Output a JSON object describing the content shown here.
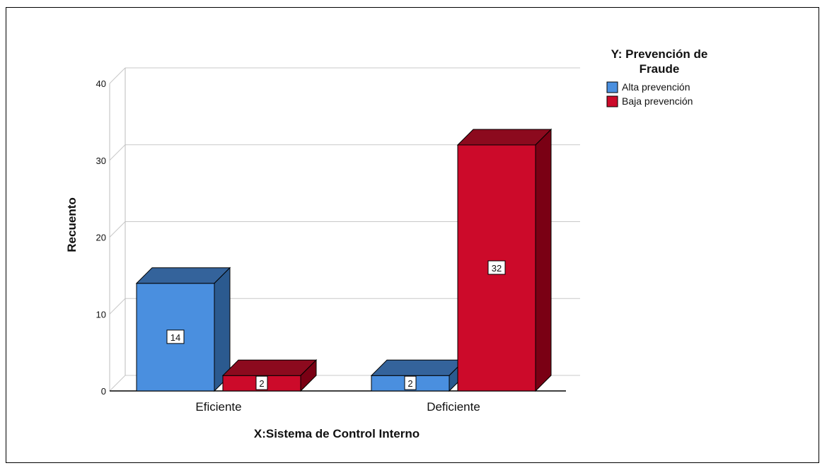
{
  "chart_data": {
    "type": "bar",
    "categories": [
      "Eficiente",
      "Deficiente"
    ],
    "series": [
      {
        "name": "Alta prevención",
        "values": [
          14,
          2
        ],
        "color": "#4a8fdf",
        "side_color": "#2b5a8f",
        "top_color": "#34639b"
      },
      {
        "name": "Baja prevención",
        "values": [
          2,
          32
        ],
        "color": "#cc0a2a",
        "side_color": "#7a0014",
        "top_color": "#8c0a1e"
      }
    ],
    "xlabel": "X:Sistema de Control Interno",
    "ylabel": "Recuento",
    "ylim": [
      0,
      40
    ],
    "yticks": [
      0,
      10,
      20,
      30,
      40
    ],
    "legend_title": "Y: Prevención de Fraude",
    "legend_position": "top-right",
    "grid": true,
    "three_d": true
  }
}
